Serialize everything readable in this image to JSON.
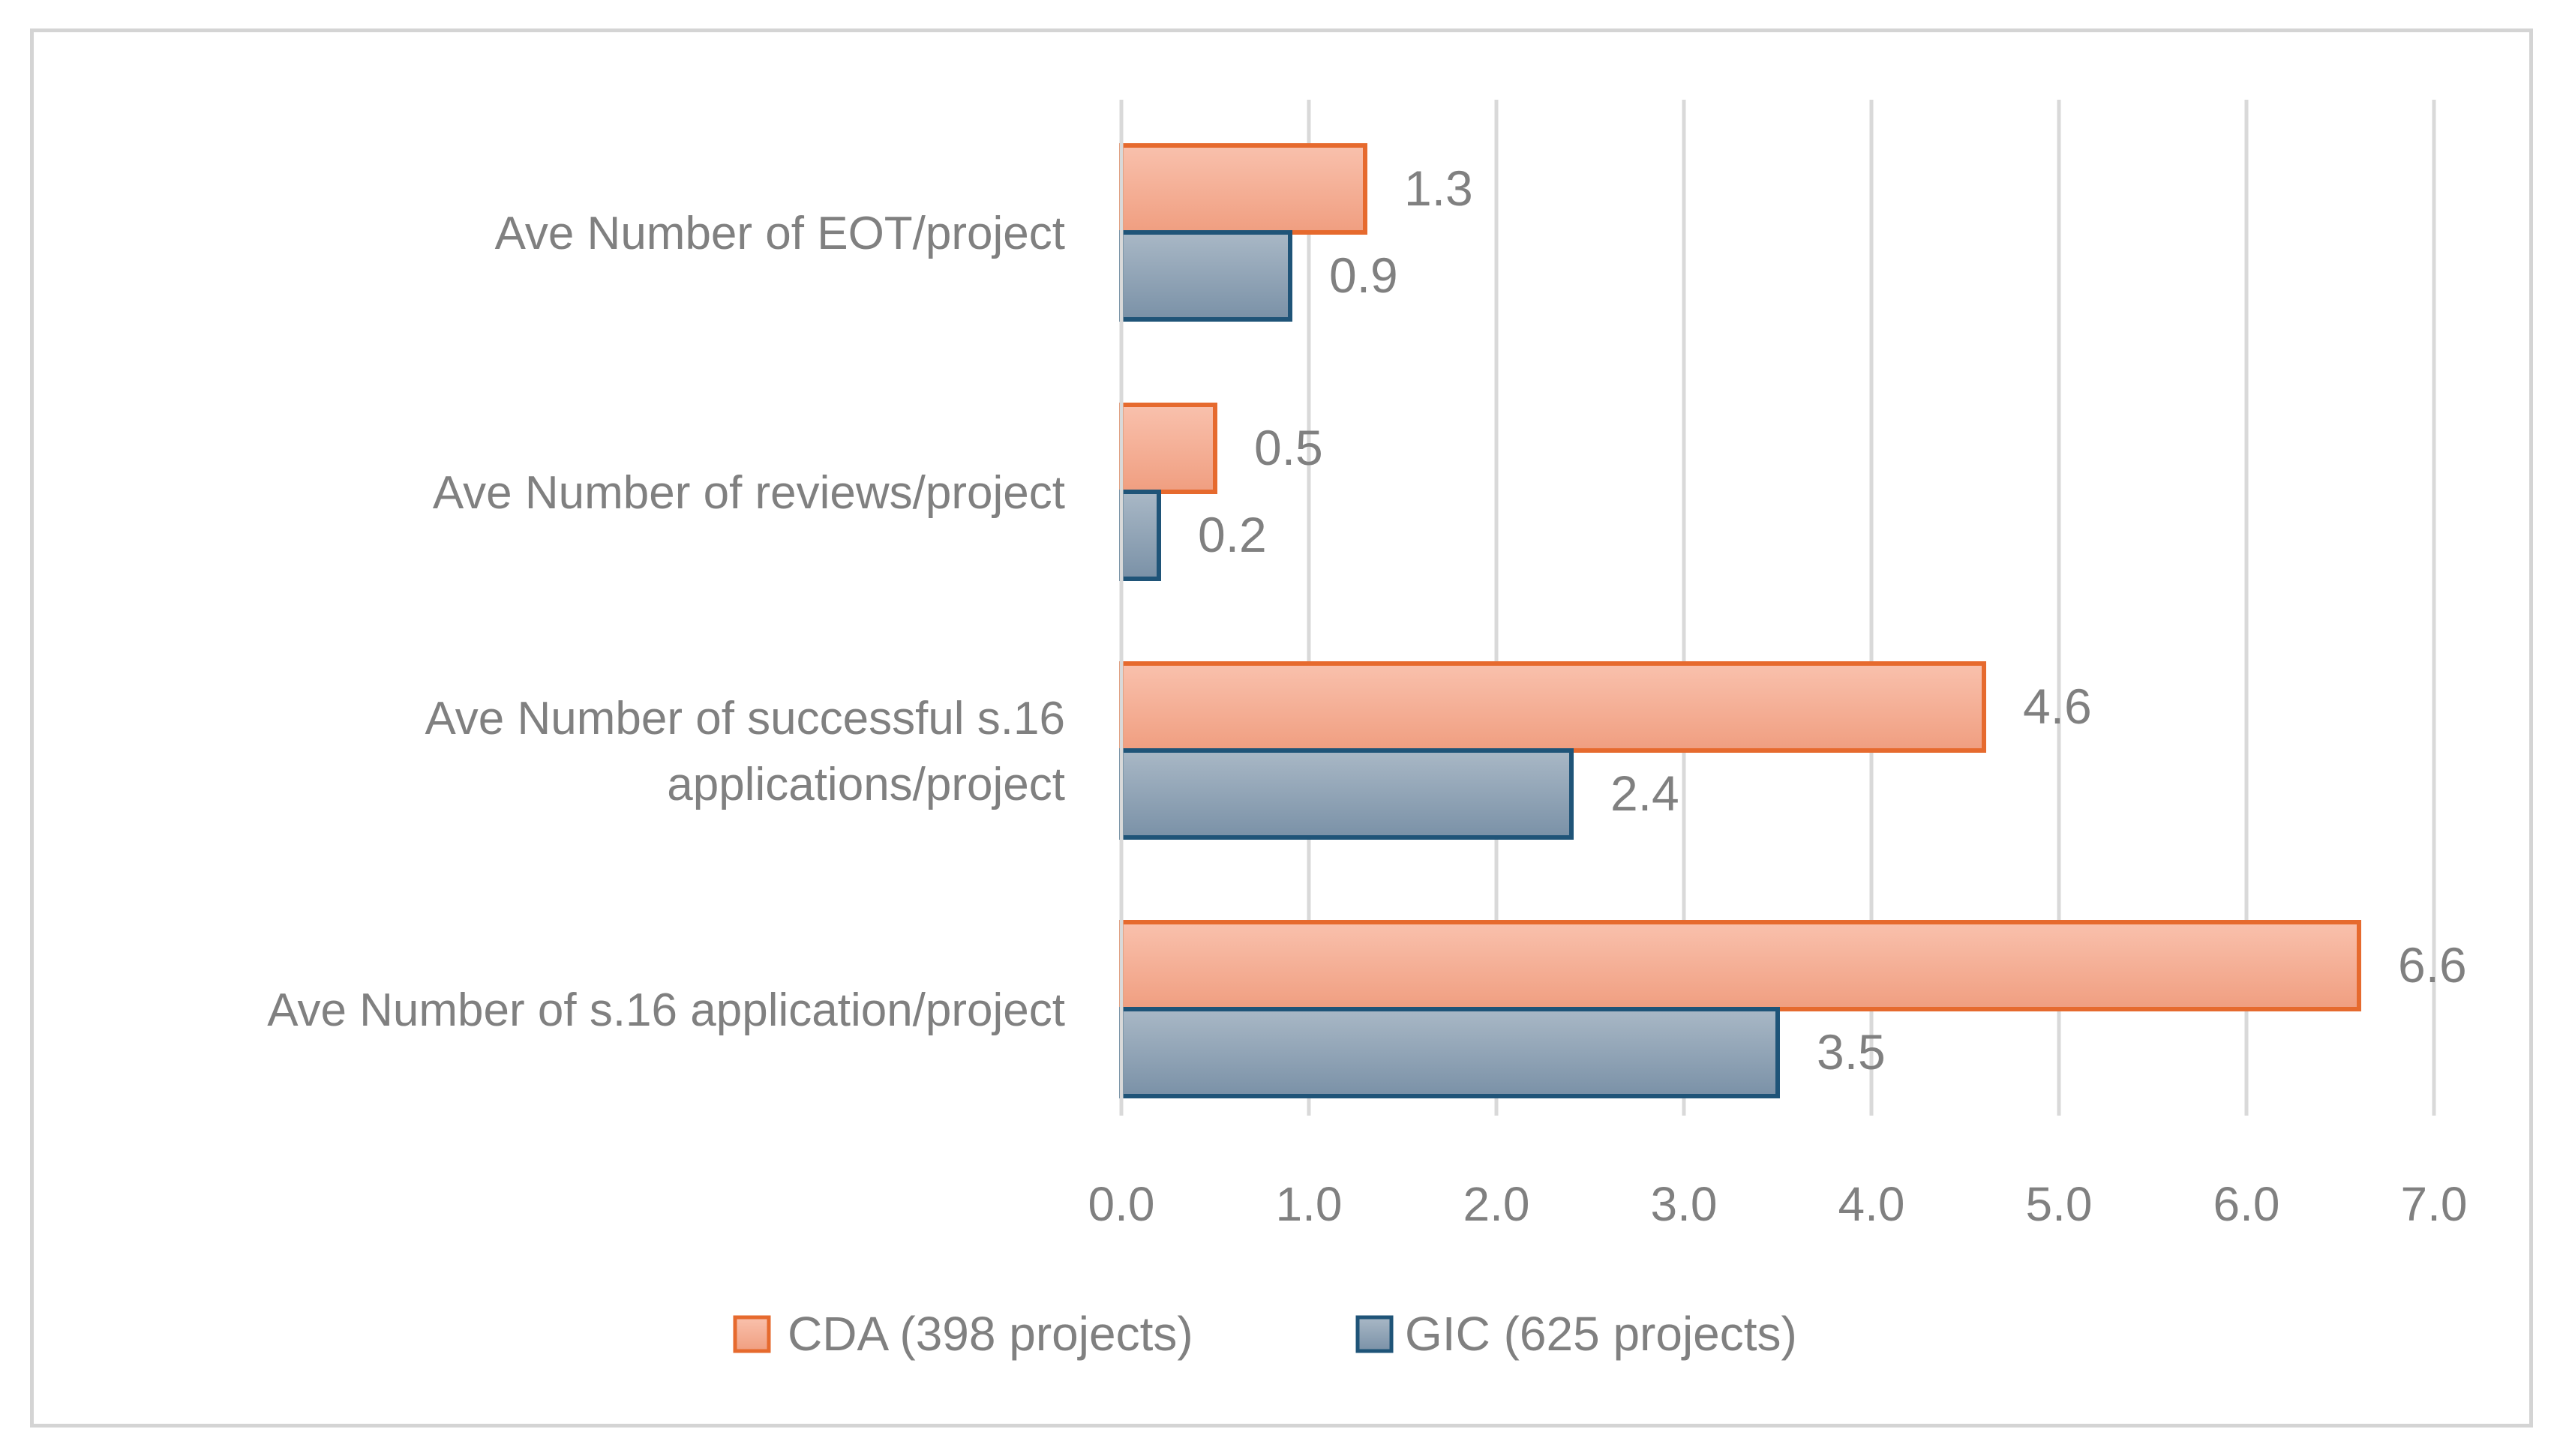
{
  "chart_data": {
    "type": "bar",
    "orientation": "horizontal",
    "title": "",
    "xlabel": "",
    "ylabel": "",
    "categories": [
      [
        "Ave Number of EOT/project"
      ],
      [
        "Ave Number of reviews/project"
      ],
      [
        "Ave Number of successful s.16",
        "applications/project"
      ],
      [
        "Ave Number of s.16 application/project"
      ]
    ],
    "series": [
      {
        "name": "CDA (398 projects)",
        "values": [
          1.3,
          0.5,
          4.6,
          6.6
        ],
        "labels": [
          "1.3",
          "0.5",
          "4.6",
          "6.6"
        ],
        "fill_top": "#f9c1ad",
        "fill_bottom": "#f09e80",
        "stroke": "#e66a2e"
      },
      {
        "name": "GIC (625 projects)",
        "values": [
          0.9,
          0.2,
          2.4,
          3.5
        ],
        "labels": [
          "0.9",
          "0.2",
          "2.4",
          "3.5"
        ],
        "fill_top": "#a9b8c6",
        "fill_bottom": "#7a91a7",
        "stroke": "#1f5478"
      }
    ],
    "xlim": [
      0,
      7
    ],
    "xticks": [
      "0.0",
      "1.0",
      "2.0",
      "3.0",
      "4.0",
      "5.0",
      "6.0",
      "7.0"
    ],
    "grid": "vertical",
    "legend_position": "bottom",
    "gridline_color": "#d9d9d9",
    "axis_line_color": "#d9d9d9",
    "text_color": "#808080"
  }
}
